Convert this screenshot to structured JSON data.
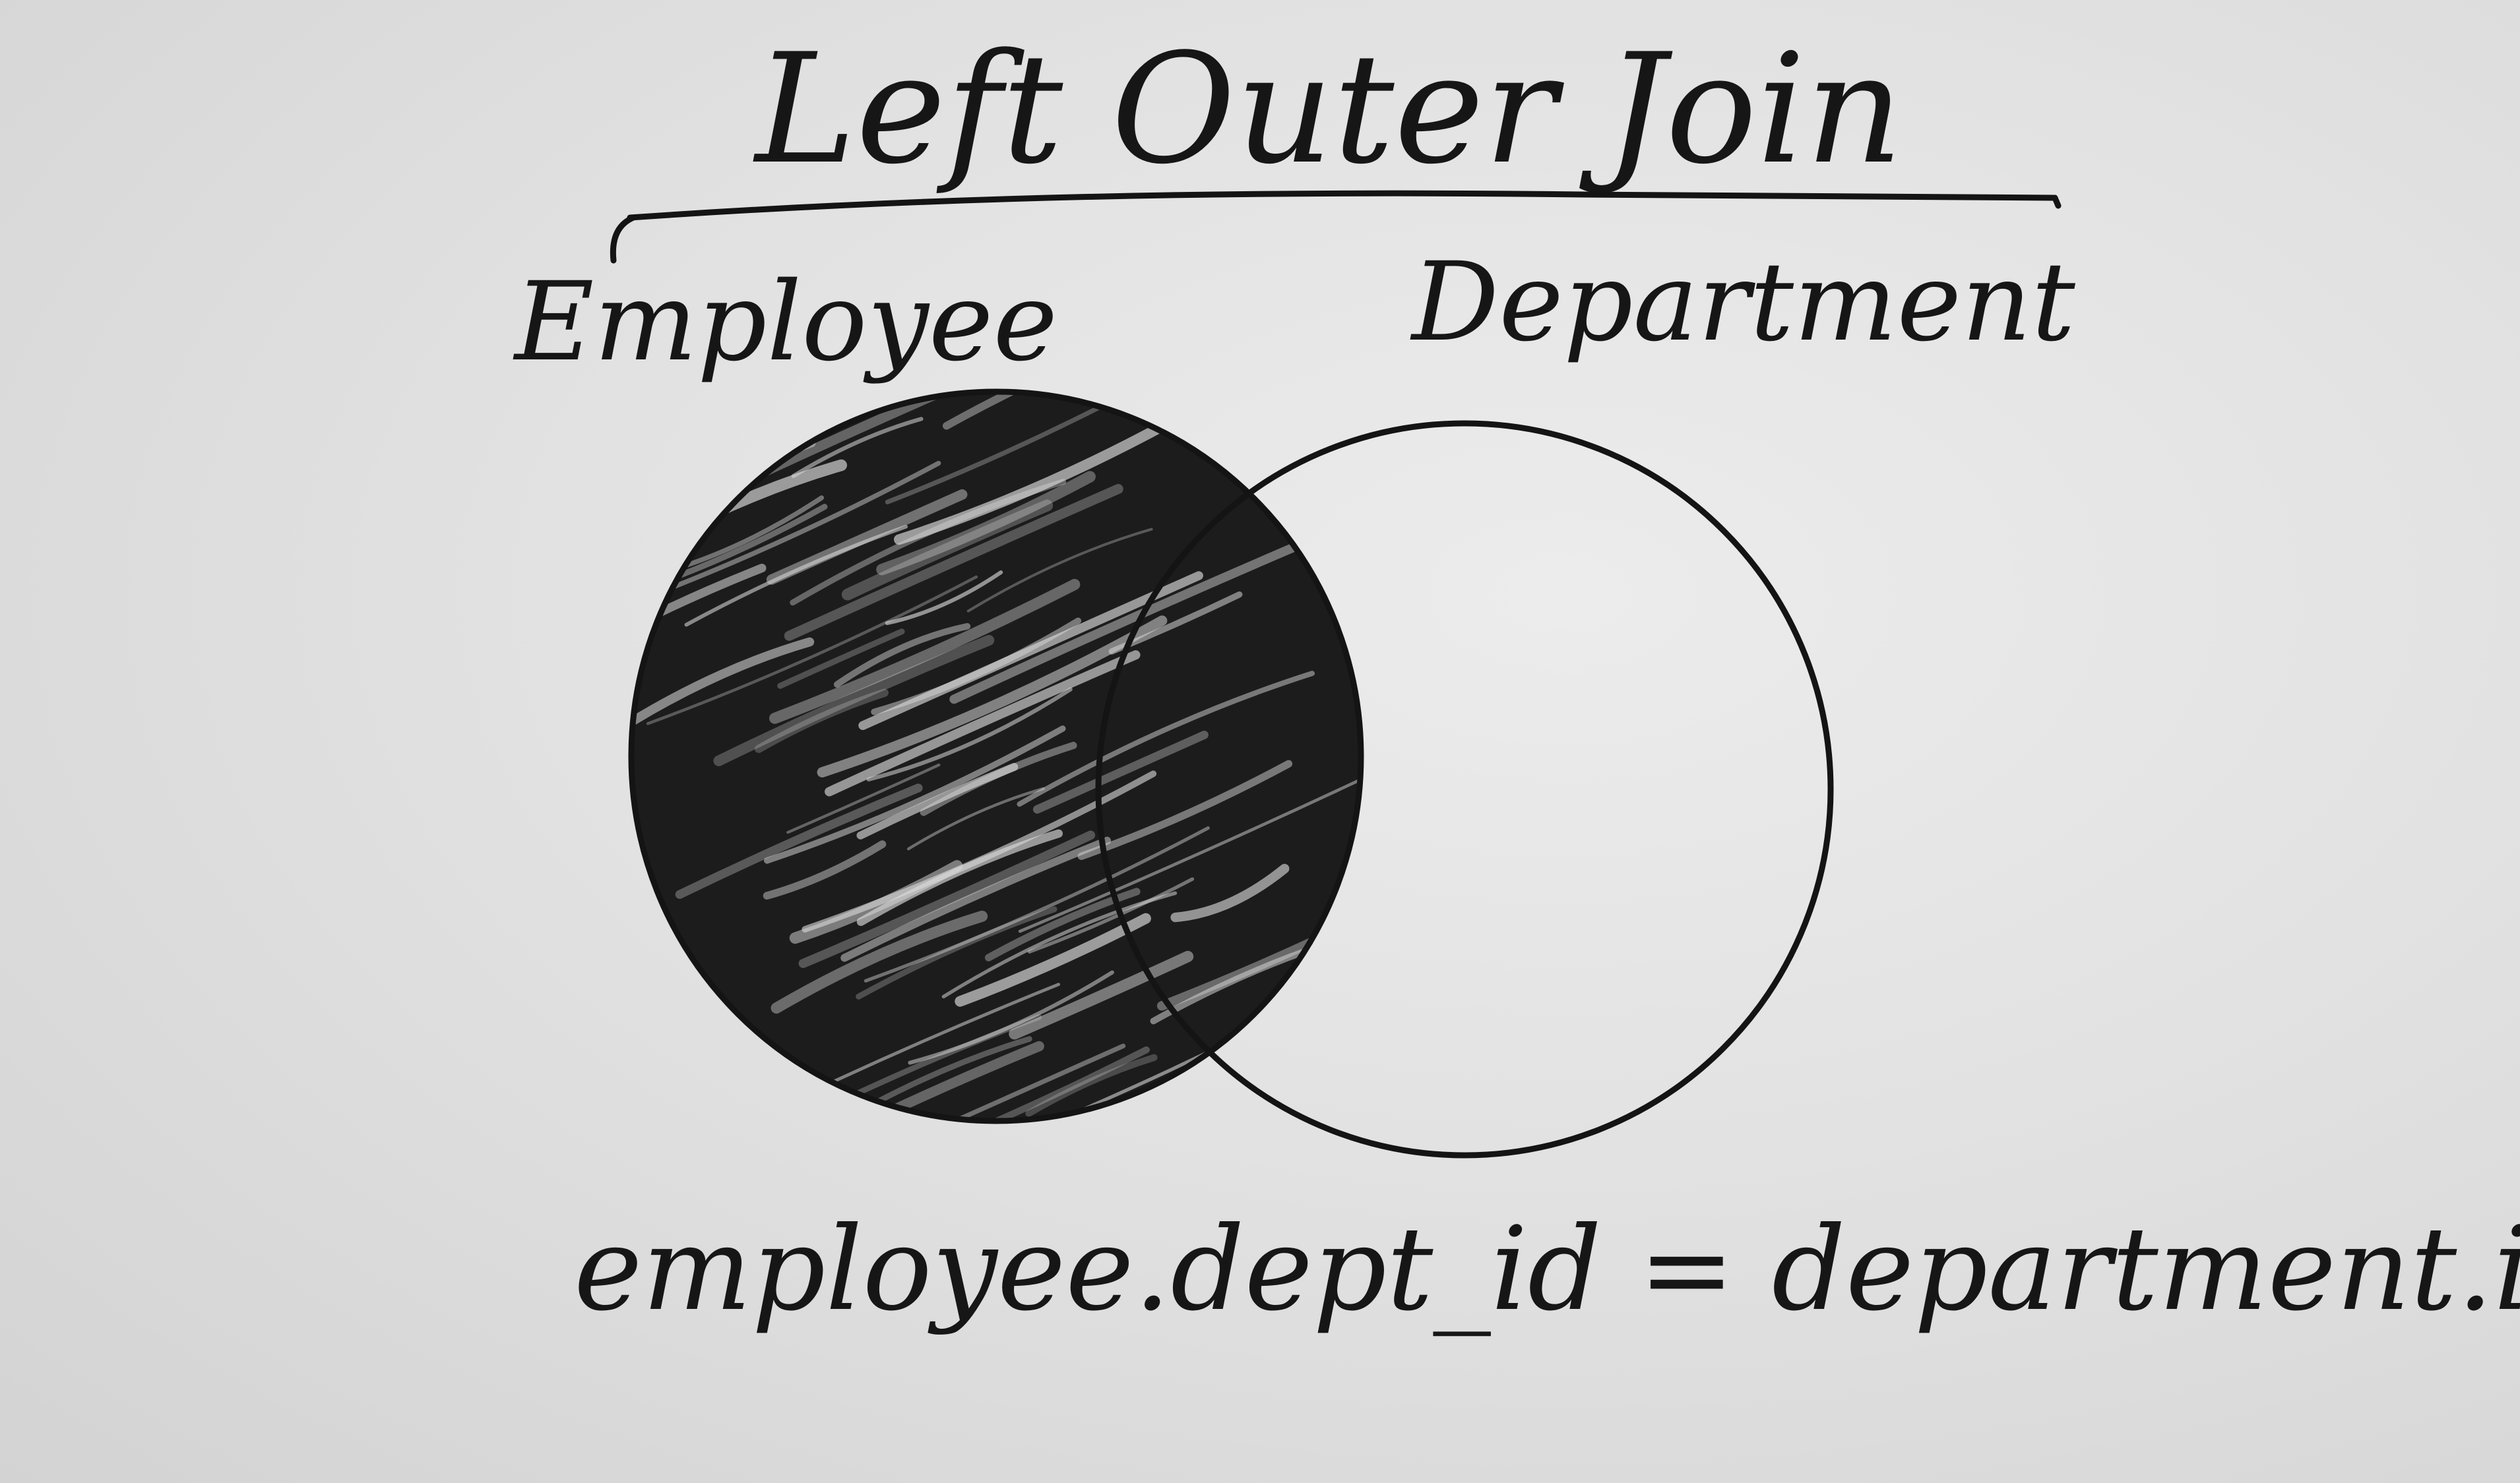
{
  "title": "Left Outer Join",
  "sets": {
    "left": {
      "label": "Employee",
      "shaded": true
    },
    "right": {
      "label": "Department",
      "shaded": false
    }
  },
  "join_condition": "employee.dept_id = department.id",
  "colors": {
    "ink": "#161616",
    "paper": "#e6e6e6"
  }
}
